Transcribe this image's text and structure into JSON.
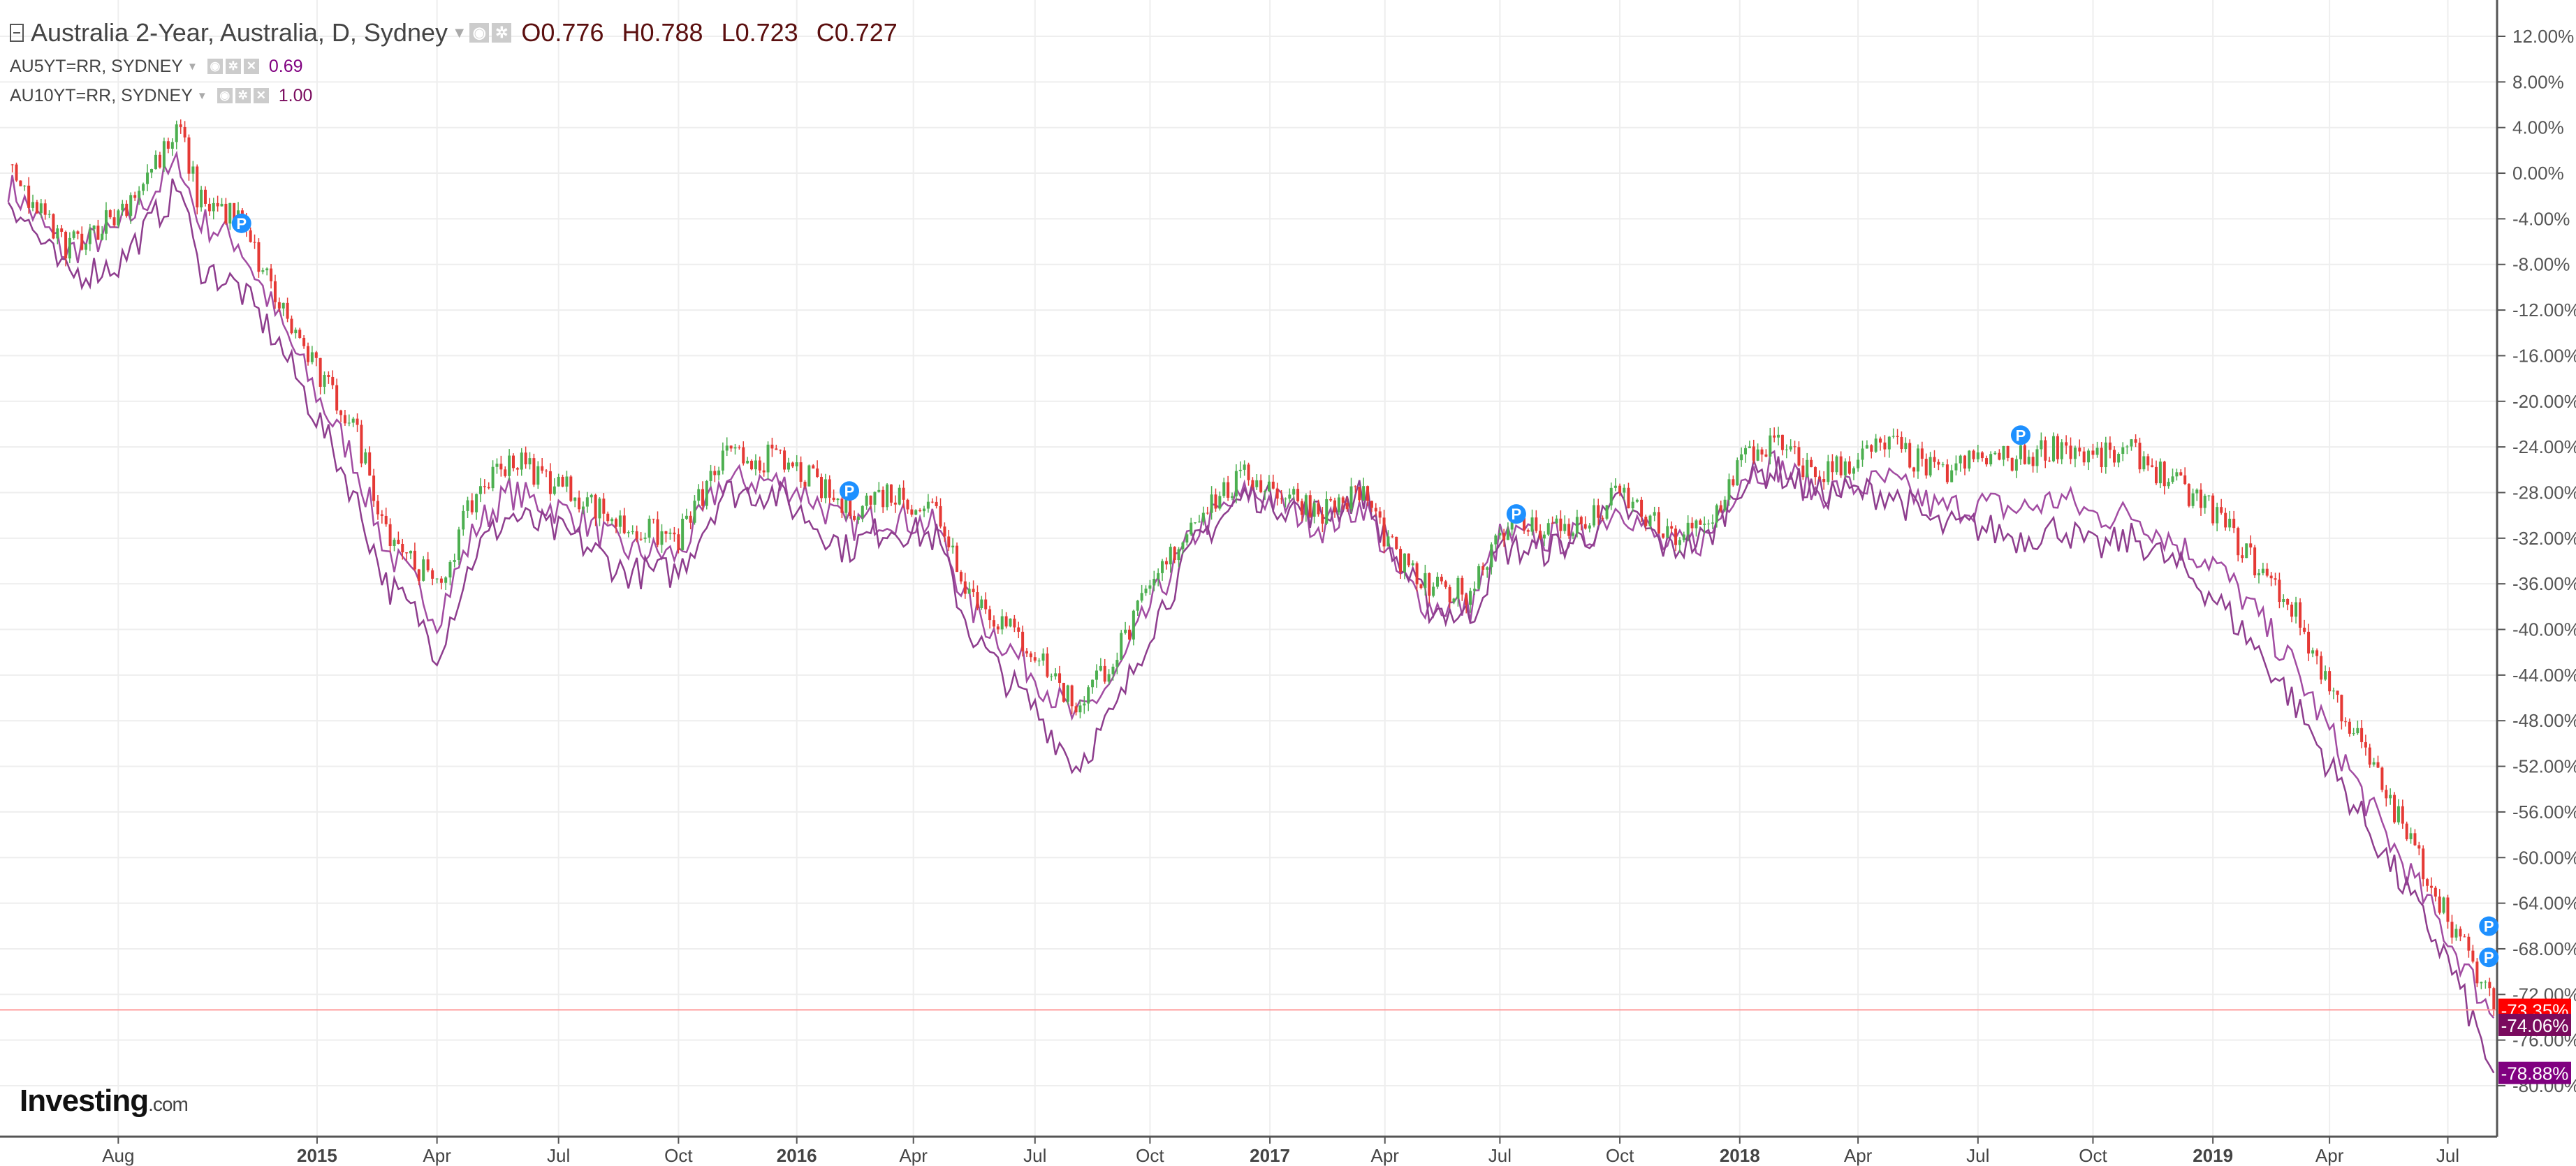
{
  "legend": {
    "main": {
      "title": "Australia 2-Year, Australia, D, Sydney",
      "open": "O0.776",
      "high": "H0.788",
      "low": "L0.723",
      "close": "C0.727"
    },
    "series": [
      {
        "title": "AU5YT=RR, SYDNEY",
        "value": "0.69"
      },
      {
        "title": "AU10YT=RR, SYDNEY",
        "value": "1.00"
      }
    ],
    "buttons": {
      "eye": "◉",
      "settings": "✲",
      "close": "✕"
    }
  },
  "logo": {
    "text": "Investing",
    "suffix": ".com"
  },
  "marker_label": "P",
  "chart_data": {
    "type": "line",
    "title": "",
    "xlabel": "",
    "ylabel": "",
    "ylim": [
      -80,
      12
    ],
    "yticks": [
      "12.00%",
      "8.00%",
      "4.00%",
      "0.00%",
      "-4.00%",
      "-8.00%",
      "-12.00%",
      "-16.00%",
      "-20.00%",
      "-24.00%",
      "-28.00%",
      "-32.00%",
      "-36.00%",
      "-40.00%",
      "-44.00%",
      "-48.00%",
      "-52.00%",
      "-56.00%",
      "-60.00%",
      "-64.00%",
      "-68.00%",
      "-72.00%",
      "-76.00%",
      "-80.00%"
    ],
    "xticks": [
      "Aug",
      "2015",
      "Apr",
      "Jul",
      "Oct",
      "2016",
      "Apr",
      "Jul",
      "Oct",
      "2017",
      "Apr",
      "Jul",
      "Oct",
      "2018",
      "Apr",
      "Jul",
      "Oct",
      "2019",
      "Apr",
      "Jul"
    ],
    "grid": true,
    "x": [
      "2014-06",
      "2014-07",
      "2014-08",
      "2014-08b",
      "2014-09",
      "2014-10",
      "2014-11",
      "2014-12",
      "2015-01",
      "2015-02",
      "2015-03",
      "2015-04",
      "2015-05",
      "2015-06",
      "2015-07",
      "2015-08",
      "2015-09",
      "2015-10",
      "2015-11",
      "2015-12",
      "2016-01",
      "2016-02",
      "2016-03",
      "2016-04",
      "2016-05",
      "2016-06",
      "2016-07",
      "2016-08",
      "2016-09",
      "2016-10",
      "2016-11",
      "2016-12",
      "2017-01",
      "2017-02",
      "2017-03",
      "2017-04",
      "2017-05",
      "2017-06",
      "2017-07",
      "2017-08",
      "2017-09",
      "2017-10",
      "2017-11",
      "2017-12",
      "2018-01",
      "2018-02",
      "2018-03",
      "2018-04",
      "2018-05",
      "2018-06",
      "2018-07",
      "2018-08",
      "2018-09",
      "2018-10",
      "2018-11",
      "2018-12",
      "2019-01",
      "2019-02",
      "2019-03",
      "2019-04",
      "2019-05",
      "2019-06",
      "2019-07",
      "2019-08"
    ],
    "series": [
      {
        "name": "Australia 2-Year",
        "style": "candles",
        "color_up": "#4caf50",
        "color_down": "#e53935",
        "values": [
          0,
          -6.4,
          -3.5,
          3.7,
          -2,
          -4,
          -11.5,
          -18,
          -22,
          -31,
          -34.5,
          -36.6,
          -28,
          -25,
          -26.5,
          -28,
          -31,
          -32,
          -25,
          -25,
          -26.5,
          -29.5,
          -28,
          -29.5,
          -36.6,
          -39.5,
          -42,
          -46.7,
          -42,
          -36.6,
          -29.5,
          -26.5,
          -28,
          -29.5,
          -28,
          -33.8,
          -36.6,
          -36.6,
          -31,
          -31,
          -31,
          -28,
          -32,
          -31,
          -25,
          -23.7,
          -26.5,
          -25,
          -23.7,
          -26.5,
          -25,
          -25,
          -23.7,
          -25,
          -24.5,
          -28,
          -29.5,
          -33.8,
          -38,
          -45,
          -51,
          -58,
          -65,
          -73.35
        ]
      },
      {
        "name": "AU5YT=RR, SYDNEY",
        "color": "#a24ca2",
        "values": [
          -1,
          -7,
          -5,
          1,
          -4,
          -6,
          -13,
          -20,
          -25,
          -33,
          -36.5,
          -39,
          -31,
          -28,
          -29,
          -30,
          -33,
          -33.5,
          -27,
          -27,
          -28,
          -31,
          -30,
          -31,
          -38,
          -41,
          -44,
          -48,
          -44,
          -38,
          -31,
          -28,
          -29,
          -31,
          -29,
          -35,
          -38,
          -38,
          -32,
          -32,
          -32,
          -29,
          -33,
          -32,
          -26.5,
          -25.5,
          -28,
          -27.5,
          -27,
          -29.5,
          -29,
          -29.5,
          -28.5,
          -30,
          -30,
          -33,
          -34,
          -38,
          -43,
          -49,
          -55,
          -61,
          -67,
          -74.06
        ]
      },
      {
        "name": "AU10YT=RR, SYDNEY",
        "color": "#8e3d8e",
        "values": [
          -2,
          -9,
          -8,
          -1,
          -8,
          -10,
          -15,
          -22,
          -28,
          -36,
          -39,
          -42,
          -33,
          -30,
          -31,
          -32,
          -35,
          -35,
          -28,
          -28,
          -30,
          -33,
          -31,
          -32,
          -40,
          -44,
          -47,
          -52,
          -47,
          -40,
          -32,
          -28,
          -29,
          -30,
          -28,
          -34,
          -38,
          -39,
          -33,
          -33,
          -32,
          -29,
          -33,
          -32,
          -27,
          -26,
          -28,
          -28,
          -28,
          -31,
          -31,
          -32,
          -31,
          -33,
          -32,
          -35,
          -37,
          -41,
          -46,
          -52,
          -57,
          -63,
          -69,
          -78.88
        ]
      }
    ],
    "last_labels": [
      {
        "text": "-73.35%",
        "color": "#ff0000"
      },
      {
        "text": "-74.06%",
        "color": "#7a0b5e"
      },
      {
        "text": "-78.88%",
        "color": "#800080"
      }
    ]
  }
}
